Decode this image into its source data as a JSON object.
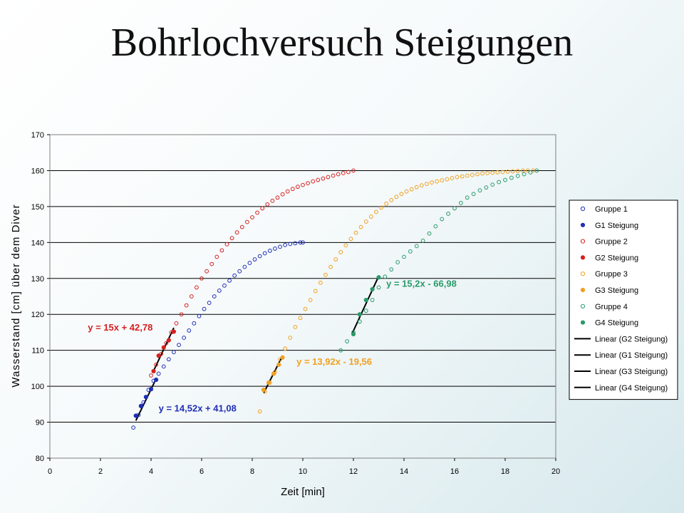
{
  "slide": {
    "title": "Bohrlochversuch Steigungen"
  },
  "chart_data": {
    "type": "scatter",
    "title": "",
    "xlabel": "Zeit [min]",
    "ylabel": "Wasserstand [cm] über dem Diver",
    "xlim": [
      0,
      20
    ],
    "ylim": [
      80,
      170
    ],
    "xticks": [
      "0",
      "2",
      "4",
      "6",
      "8",
      "10",
      "12",
      "14",
      "16",
      "18",
      "20"
    ],
    "yticks": [
      "80",
      "90",
      "100",
      "110",
      "120",
      "130",
      "140",
      "150",
      "160",
      "170"
    ],
    "grid": "horizontal",
    "legend_position": "right",
    "series": [
      {
        "name": "Gruppe 1",
        "kind": "open",
        "color": "#1f2fb5",
        "x": [
          3.3,
          3.5,
          3.7,
          3.9,
          4.1,
          4.3,
          4.5,
          4.7,
          4.9,
          5.1,
          5.3,
          5.5,
          5.7,
          5.9,
          6.1,
          6.3,
          6.5,
          6.7,
          6.9,
          7.1,
          7.3,
          7.5,
          7.7,
          7.9,
          8.1,
          8.3,
          8.5,
          8.7,
          8.9,
          9.1,
          9.3,
          9.5,
          9.7,
          9.9,
          10.0
        ],
        "y": [
          88.5,
          92,
          95.5,
          99,
          101.5,
          103.5,
          105.5,
          107.5,
          109.5,
          111.5,
          113.5,
          115.5,
          117.5,
          119.5,
          121.5,
          123.2,
          125,
          126.6,
          128,
          129.4,
          130.8,
          132,
          133.2,
          134.3,
          135.3,
          136.2,
          137,
          137.7,
          138.3,
          138.8,
          139.3,
          139.6,
          139.8,
          140,
          140
        ]
      },
      {
        "name": "G1 Steigung",
        "kind": "filled",
        "color": "#1f2fb5",
        "x": [
          3.4,
          3.6,
          3.8,
          4.0,
          4.2
        ],
        "y": [
          91.8,
          94.5,
          97,
          99.2,
          101.8
        ]
      },
      {
        "name": "Gruppe 2",
        "kind": "open",
        "color": "#d62020",
        "x": [
          4.0,
          4.2,
          4.4,
          4.6,
          4.8,
          5.0,
          5.2,
          5.4,
          5.6,
          5.8,
          6.0,
          6.2,
          6.4,
          6.6,
          6.8,
          7.0,
          7.2,
          7.4,
          7.6,
          7.8,
          8.0,
          8.2,
          8.4,
          8.6,
          8.8,
          9.0,
          9.2,
          9.4,
          9.6,
          9.8,
          10.0,
          10.2,
          10.4,
          10.6,
          10.8,
          11.0,
          11.2,
          11.4,
          11.6,
          11.8,
          12.0
        ],
        "y": [
          103,
          106,
          109,
          112,
          115,
          117.5,
          120,
          122.5,
          125,
          127.5,
          130,
          132,
          134,
          136,
          137.8,
          139.5,
          141.2,
          142.8,
          144.3,
          145.7,
          147,
          148.3,
          149.5,
          150.6,
          151.6,
          152.5,
          153.4,
          154.2,
          154.9,
          155.5,
          156,
          156.5,
          157,
          157.4,
          157.8,
          158.2,
          158.6,
          159,
          159.3,
          159.6,
          160
        ]
      },
      {
        "name": "G2 Steigung",
        "kind": "filled",
        "color": "#d62020",
        "x": [
          4.1,
          4.3,
          4.5,
          4.7,
          4.9
        ],
        "y": [
          104.2,
          108.5,
          110.8,
          112.8,
          115.2
        ]
      },
      {
        "name": "Gruppe 3",
        "kind": "open",
        "color": "#f0a020",
        "x": [
          8.3,
          8.5,
          8.7,
          8.9,
          9.1,
          9.3,
          9.5,
          9.7,
          9.9,
          10.1,
          10.3,
          10.5,
          10.7,
          10.9,
          11.1,
          11.3,
          11.5,
          11.7,
          11.9,
          12.1,
          12.3,
          12.5,
          12.7,
          12.9,
          13.1,
          13.3,
          13.5,
          13.7,
          13.9,
          14.1,
          14.3,
          14.5,
          14.7,
          14.9,
          15.1,
          15.3,
          15.5,
          15.7,
          15.9,
          16.1,
          16.3,
          16.5,
          16.7,
          16.9,
          17.1,
          17.3,
          17.5,
          17.7,
          17.9,
          18.1,
          18.3,
          18.5,
          18.7,
          18.9,
          19.1
        ],
        "y": [
          93,
          98.5,
          101,
          104,
          107.5,
          110.5,
          113.5,
          116.5,
          119,
          121.5,
          124,
          126.5,
          128.8,
          131,
          133.2,
          135.3,
          137.3,
          139.2,
          141,
          142.7,
          144.3,
          145.8,
          147.2,
          148.5,
          149.7,
          150.8,
          151.8,
          152.7,
          153.5,
          154.2,
          154.8,
          155.4,
          155.9,
          156.3,
          156.7,
          157,
          157.3,
          157.6,
          157.9,
          158.2,
          158.4,
          158.6,
          158.8,
          159,
          159.2,
          159.3,
          159.4,
          159.5,
          159.6,
          159.7,
          159.8,
          159.9,
          160,
          160,
          160
        ]
      },
      {
        "name": "G3 Steigung",
        "kind": "filled",
        "color": "#f0a020",
        "x": [
          8.45,
          8.65,
          8.85,
          9.05,
          9.2
        ],
        "y": [
          99,
          101,
          103.5,
          106,
          108
        ]
      },
      {
        "name": "Gruppe 4",
        "kind": "open",
        "color": "#2a9a6a",
        "x": [
          11.5,
          11.75,
          12.0,
          12.25,
          12.5,
          12.75,
          13.0,
          13.25,
          13.5,
          13.75,
          14.0,
          14.25,
          14.5,
          14.75,
          15.0,
          15.25,
          15.5,
          15.75,
          16.0,
          16.25,
          16.5,
          16.75,
          17.0,
          17.25,
          17.5,
          17.75,
          18.0,
          18.25,
          18.5,
          18.75,
          19.0,
          19.25
        ],
        "y": [
          110,
          112.5,
          115,
          118,
          121,
          124,
          127.5,
          130.5,
          132.5,
          134.5,
          136,
          137.5,
          139,
          140.5,
          142.5,
          144.5,
          146.5,
          148,
          149.5,
          151,
          152.5,
          153.5,
          154.5,
          155.3,
          156.1,
          156.8,
          157.4,
          158,
          158.5,
          159,
          159.5,
          160
        ]
      },
      {
        "name": "G4 Steigung",
        "kind": "filled",
        "color": "#2a9a6a",
        "x": [
          12.0,
          12.25,
          12.5,
          12.75,
          13.0
        ],
        "y": [
          114.5,
          120,
          124,
          127,
          130.3
        ]
      },
      {
        "name": "Linear (G2 Steigung)",
        "kind": "line",
        "color": "#000000",
        "slope": 15,
        "intercept": 42.78,
        "x_range": [
          4.1,
          4.9
        ]
      },
      {
        "name": "Linear (G1 Steigung)",
        "kind": "line",
        "color": "#000000",
        "slope": 14.52,
        "intercept": 41.08,
        "x_range": [
          3.4,
          4.2
        ]
      },
      {
        "name": "Linear (G3 Steigung)",
        "kind": "line",
        "color": "#000000",
        "slope": 13.92,
        "intercept": -19.56,
        "x_range": [
          8.45,
          9.2
        ]
      },
      {
        "name": "Linear (G4 Steigung)",
        "kind": "line",
        "color": "#000000",
        "slope": 15.2,
        "intercept": -66.98,
        "x_range": [
          11.95,
          13.0
        ]
      }
    ],
    "annotations": [
      {
        "text": "y = 15x + 42,78",
        "color": "#d62020",
        "x": 1.5,
        "y": 115.5
      },
      {
        "text": "y = 14,52x + 41,08",
        "color": "#1f2fb5",
        "x": 4.3,
        "y": 93
      },
      {
        "text": "y = 13,92x - 19,56",
        "color": "#f0a020",
        "x": 9.75,
        "y": 106
      },
      {
        "text": "y = 15,2x - 66,98",
        "color": "#2a9a6a",
        "x": 13.3,
        "y": 127.7
      }
    ]
  }
}
